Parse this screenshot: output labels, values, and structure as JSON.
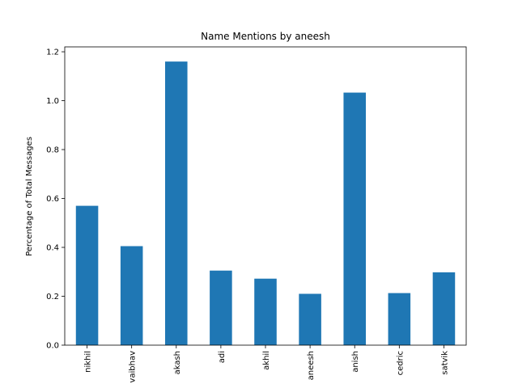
{
  "chart_data": {
    "type": "bar",
    "title": "Name Mentions by aneesh",
    "xlabel": "",
    "ylabel": "Percentage of Total Messages",
    "categories": [
      "nikhil",
      "vaibhav",
      "akash",
      "adi",
      "akhil",
      "aneesh",
      "anish",
      "cedric",
      "satvik"
    ],
    "values": [
      0.57,
      0.405,
      1.16,
      0.305,
      0.272,
      0.21,
      1.033,
      0.213,
      0.298
    ],
    "ylim": [
      0,
      1.22
    ],
    "yticks": [
      "0.0",
      "0.2",
      "0.4",
      "0.6",
      "0.8",
      "1.0",
      "1.2"
    ],
    "bar_color": "#1f77b4",
    "grid": false,
    "legend": "none"
  }
}
